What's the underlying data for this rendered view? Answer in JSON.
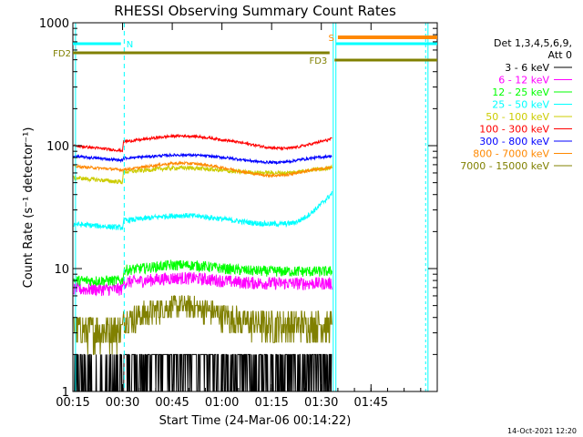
{
  "chart_data": {
    "type": "line",
    "title": "RHESSI Observing Summary Count Rates",
    "xlabel": "Start Time (24-Mar-06 00:14:22)",
    "ylabel": "Count Rate (s⁻¹ detector⁻¹)",
    "y_scale": "log",
    "xlim_min": [
      15,
      125
    ],
    "ylim": [
      1,
      1000
    ],
    "x_tick_values_min": [
      15,
      30,
      45,
      60,
      75,
      90,
      105
    ],
    "x_tick_labels": [
      "00:15",
      "00:30",
      "00:45",
      "01:00",
      "01:15",
      "01:30",
      "01:45"
    ],
    "y_tick_values": [
      1,
      10,
      100,
      1000
    ],
    "y_tick_labels": [
      "1",
      "10",
      "100",
      "1000"
    ],
    "legend_position": "right",
    "legend_header": [
      "Det 1,3,4,5,6,9,",
      "Att 0"
    ],
    "series": [
      {
        "name": "3 - 6 keV",
        "color": "#000000"
      },
      {
        "name": "6 - 12 keV",
        "color": "#ff00ff"
      },
      {
        "name": "12 - 25 keV",
        "color": "#00ff00"
      },
      {
        "name": "25 - 50 keV",
        "color": "#00ffff"
      },
      {
        "name": "50 - 100 keV",
        "color": "#cccc00"
      },
      {
        "name": "100 - 300 keV",
        "color": "#ff0000"
      },
      {
        "name": "300 - 800 keV",
        "color": "#0000ff"
      },
      {
        "name": "800 - 7000 keV",
        "color": "#ff8800"
      },
      {
        "name": "7000 - 15000 keV",
        "color": "#808000"
      }
    ],
    "flags": [
      {
        "label": "N",
        "color": "#00ffff"
      },
      {
        "label": "S",
        "color": "#ff8800"
      },
      {
        "label": "FD2",
        "color": "#808000"
      },
      {
        "label": "FD3",
        "color": "#808000"
      }
    ],
    "footer": "14-Oct-2021 12:20"
  }
}
